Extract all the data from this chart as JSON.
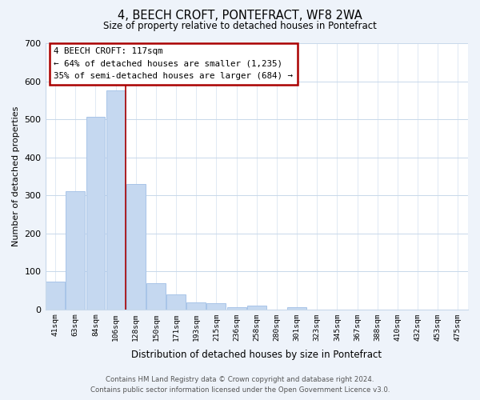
{
  "title": "4, BEECH CROFT, PONTEFRACT, WF8 2WA",
  "subtitle": "Size of property relative to detached houses in Pontefract",
  "xlabel": "Distribution of detached houses by size in Pontefract",
  "ylabel": "Number of detached properties",
  "bar_labels": [
    "41sqm",
    "63sqm",
    "84sqm",
    "106sqm",
    "128sqm",
    "150sqm",
    "171sqm",
    "193sqm",
    "215sqm",
    "236sqm",
    "258sqm",
    "280sqm",
    "301sqm",
    "323sqm",
    "345sqm",
    "367sqm",
    "388sqm",
    "410sqm",
    "432sqm",
    "453sqm",
    "475sqm"
  ],
  "bar_values": [
    72,
    310,
    507,
    575,
    330,
    68,
    38,
    18,
    15,
    5,
    10,
    0,
    5,
    0,
    0,
    0,
    0,
    0,
    0,
    0,
    0
  ],
  "bar_color": "#c5d8f0",
  "bar_edge_color": "#a8c4e8",
  "vline_x": 3.5,
  "vline_color": "#aa0000",
  "annotation_title": "4 BEECH CROFT: 117sqm",
  "annotation_line1": "← 64% of detached houses are smaller (1,235)",
  "annotation_line2": "35% of semi-detached houses are larger (684) →",
  "annotation_box_color": "#ffffff",
  "annotation_box_edge": "#aa0000",
  "ylim": [
    0,
    700
  ],
  "yticks": [
    0,
    100,
    200,
    300,
    400,
    500,
    600,
    700
  ],
  "footer_line1": "Contains HM Land Registry data © Crown copyright and database right 2024.",
  "footer_line2": "Contains public sector information licensed under the Open Government Licence v3.0.",
  "bg_color": "#eef3fa",
  "plot_bg_color": "#ffffff",
  "grid_color": "#c8d8ea"
}
